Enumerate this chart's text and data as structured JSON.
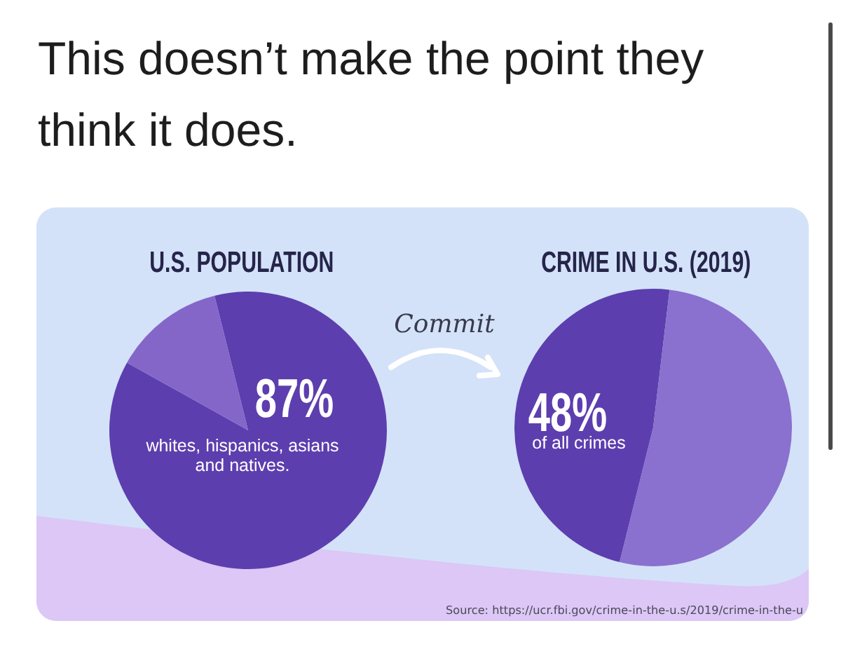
{
  "chart_data": [
    {
      "type": "pie",
      "title": "U.S. POPULATION",
      "categories": [
        "whites, hispanics, asians and natives.",
        null
      ],
      "values": [
        87,
        13
      ],
      "value_labels": [
        "87%",
        null
      ],
      "colors": [
        "#5d3eae",
        "#8466c8"
      ],
      "annotations": [
        "This doesn’t make the point they think it does."
      ]
    },
    {
      "type": "pie",
      "title": "CRIME IN U.S. (2019)",
      "categories": [
        "of all crimes",
        null
      ],
      "values": [
        48,
        52
      ],
      "value_labels": [
        "48%",
        null
      ],
      "colors": [
        "#5d3eae",
        "#8a70cf"
      ],
      "annotations": [
        "Commit",
        "Source: https://ucr.fbi.gov/crime-in-the-u.s/2019/crime-in-the-u"
      ]
    }
  ]
}
